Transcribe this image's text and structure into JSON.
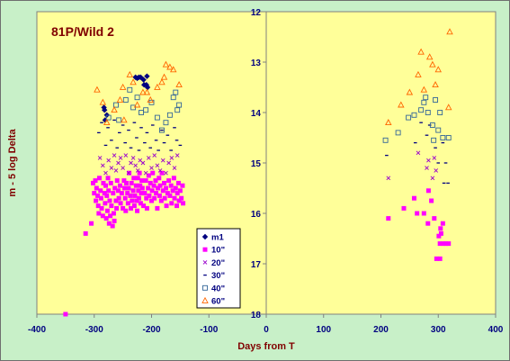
{
  "chart_data": {
    "type": "scatter",
    "title": "81P/Wild 2",
    "xlabel": "Days from T",
    "ylabel": "m - 5 log Delta",
    "xlim": [
      -400,
      400
    ],
    "ylim": [
      18,
      12
    ],
    "y_inverted": true,
    "x_ticks": [
      "-400",
      "-300",
      "-200",
      "-100",
      "0",
      "100",
      "200",
      "300",
      "400"
    ],
    "y_ticks": [
      "12",
      "13",
      "14",
      "15",
      "16",
      "17",
      "18"
    ],
    "grid": false,
    "legend_position": "center-bottom",
    "plot_background": "#ffff99",
    "outer_background": "#c8f0c8",
    "series": [
      {
        "name": "m1",
        "marker": "diamond",
        "color": "#000080",
        "points": [
          [
            -283,
            13.9
          ],
          [
            -282,
            13.95
          ],
          [
            -281,
            14.15
          ],
          [
            -278,
            14.05
          ],
          [
            -228,
            13.3
          ],
          [
            -225,
            13.32
          ],
          [
            -222,
            13.3
          ],
          [
            -219,
            13.3
          ],
          [
            -214,
            13.35
          ],
          [
            -213,
            13.45
          ],
          [
            -208,
            13.28
          ],
          [
            -209,
            13.45
          ],
          [
            -207,
            13.5
          ]
        ]
      },
      {
        "name": "10\"",
        "marker": "square",
        "color": "#ff00ff",
        "points": [
          [
            -350,
            18
          ],
          [
            -315,
            16.4
          ],
          [
            -305,
            16.2
          ],
          [
            -302,
            15.4
          ],
          [
            -300,
            15.6
          ],
          [
            -298,
            15.35
          ],
          [
            -297,
            15.75
          ],
          [
            -296,
            15.5
          ],
          [
            -294,
            15.65
          ],
          [
            -293,
            15.85
          ],
          [
            -292,
            16.0
          ],
          [
            -291,
            15.3
          ],
          [
            -289,
            15.55
          ],
          [
            -288,
            15.7
          ],
          [
            -287,
            15.9
          ],
          [
            -285,
            16.05
          ],
          [
            -284,
            15.4
          ],
          [
            -282,
            15.6
          ],
          [
            -281,
            15.8
          ],
          [
            -280,
            15.45
          ],
          [
            -279,
            16.1
          ],
          [
            -278,
            15.65
          ],
          [
            -277,
            15.95
          ],
          [
            -276,
            15.3
          ],
          [
            -275,
            15.55
          ],
          [
            -274,
            16.2
          ],
          [
            -273,
            15.75
          ],
          [
            -272,
            16.05
          ],
          [
            -271,
            15.4
          ],
          [
            -270,
            15.85
          ],
          [
            -268,
            16.25
          ],
          [
            -267,
            15.6
          ],
          [
            -266,
            16.0
          ],
          [
            -265,
            16.15
          ],
          [
            -264,
            15.5
          ],
          [
            -262,
            15.75
          ],
          [
            -261,
            15.9
          ],
          [
            -260,
            15.35
          ],
          [
            -258,
            15.55
          ],
          [
            -257,
            15.7
          ],
          [
            -255,
            15.45
          ],
          [
            -254,
            15.8
          ],
          [
            -252,
            15.6
          ],
          [
            -250,
            15.9
          ],
          [
            -248,
            15.35
          ],
          [
            -247,
            15.5
          ],
          [
            -246,
            15.7
          ],
          [
            -245,
            15.95
          ],
          [
            -244,
            15.4
          ],
          [
            -242,
            15.6
          ],
          [
            -241,
            15.8
          ],
          [
            -240,
            15.5
          ],
          [
            -239,
            15.2
          ],
          [
            -237,
            15.65
          ],
          [
            -236,
            15.9
          ],
          [
            -235,
            15.4
          ],
          [
            -234,
            15.75
          ],
          [
            -232,
            15.55
          ],
          [
            -231,
            15.3
          ],
          [
            -230,
            15.85
          ],
          [
            -229,
            15.65
          ],
          [
            -227,
            15.45
          ],
          [
            -226,
            15.75
          ],
          [
            -225,
            15.95
          ],
          [
            -224,
            15.3
          ],
          [
            -223,
            15.55
          ],
          [
            -222,
            15.7
          ],
          [
            -221,
            15.2
          ],
          [
            -220,
            15.45
          ],
          [
            -219,
            15.8
          ],
          [
            -218,
            15.6
          ],
          [
            -217,
            15.35
          ],
          [
            -216,
            15.5
          ],
          [
            -214,
            15.85
          ],
          [
            -212,
            15.6
          ],
          [
            -210,
            15.35
          ],
          [
            -209,
            15.7
          ],
          [
            -208,
            15.9
          ],
          [
            -206,
            15.5
          ],
          [
            -205,
            15.25
          ],
          [
            -204,
            15.65
          ],
          [
            -202,
            15.4
          ],
          [
            -200,
            15.75
          ],
          [
            -199,
            15.55
          ],
          [
            -198,
            15.2
          ],
          [
            -196,
            15.45
          ],
          [
            -195,
            15.7
          ],
          [
            -193,
            15.35
          ],
          [
            -192,
            15.6
          ],
          [
            -190,
            15.9
          ],
          [
            -189,
            15.5
          ],
          [
            -187,
            15.3
          ],
          [
            -186,
            15.65
          ],
          [
            -185,
            15.45
          ],
          [
            -183,
            15.75
          ],
          [
            -182,
            15.2
          ],
          [
            -180,
            15.55
          ],
          [
            -178,
            15.4
          ],
          [
            -177,
            15.7
          ],
          [
            -175,
            15.5
          ],
          [
            -174,
            15.85
          ],
          [
            -172,
            15.6
          ],
          [
            -170,
            15.35
          ],
          [
            -168,
            15.65
          ],
          [
            -166,
            15.45
          ],
          [
            -165,
            15.8
          ],
          [
            -163,
            15.55
          ],
          [
            -161,
            15.3
          ],
          [
            -160,
            15.7
          ],
          [
            -158,
            15.5
          ],
          [
            -156,
            15.85
          ],
          [
            -155,
            15.6
          ],
          [
            -153,
            15.4
          ],
          [
            -152,
            15.75
          ],
          [
            -150,
            15.55
          ],
          [
            -148,
            15.7
          ],
          [
            -146,
            15.45
          ],
          [
            -145,
            15.8
          ],
          [
            213,
            16.1
          ],
          [
            240,
            15.9
          ],
          [
            258,
            15.7
          ],
          [
            263,
            16.0
          ],
          [
            275,
            16.0
          ],
          [
            282,
            16.2
          ],
          [
            283,
            15.55
          ],
          [
            288,
            15.75
          ],
          [
            293,
            16.1
          ],
          [
            297,
            16.9
          ],
          [
            303,
            16.9
          ],
          [
            301,
            16.45
          ],
          [
            303,
            16.6
          ],
          [
            304,
            16.3
          ],
          [
            305,
            16.4
          ],
          [
            308,
            16.2
          ],
          [
            309,
            16.6
          ],
          [
            313,
            16.6
          ],
          [
            318,
            16.6
          ]
        ]
      },
      {
        "name": "20\"",
        "marker": "x",
        "color": "#9900cc",
        "points": [
          [
            -290,
            14.9
          ],
          [
            -285,
            15.05
          ],
          [
            -280,
            15.2
          ],
          [
            -275,
            14.95
          ],
          [
            -270,
            15.1
          ],
          [
            -265,
            14.85
          ],
          [
            -262,
            15.15
          ],
          [
            -258,
            15.0
          ],
          [
            -254,
            14.9
          ],
          [
            -250,
            15.1
          ],
          [
            -245,
            14.85
          ],
          [
            -240,
            15.2
          ],
          [
            -236,
            15.0
          ],
          [
            -232,
            14.9
          ],
          [
            -228,
            15.05
          ],
          [
            -224,
            15.15
          ],
          [
            -220,
            14.95
          ],
          [
            -215,
            15.0
          ],
          [
            -210,
            15.2
          ],
          [
            -205,
            14.9
          ],
          [
            -200,
            15.1
          ],
          [
            -195,
            14.85
          ],
          [
            -190,
            15.05
          ],
          [
            -185,
            15.15
          ],
          [
            -180,
            14.95
          ],
          [
            -175,
            15.2
          ],
          [
            -170,
            15.0
          ],
          [
            -165,
            14.9
          ],
          [
            -160,
            15.1
          ],
          [
            -155,
            14.85
          ],
          [
            213,
            15.3
          ],
          [
            265,
            14.8
          ],
          [
            280,
            15.1
          ],
          [
            283,
            14.95
          ],
          [
            290,
            15.3
          ],
          [
            293,
            14.9
          ],
          [
            296,
            15.15
          ]
        ]
      },
      {
        "name": "30\"",
        "marker": "dash",
        "color": "#000080",
        "points": [
          [
            -292,
            14.4
          ],
          [
            -287,
            14.2
          ],
          [
            -280,
            14.65
          ],
          [
            -276,
            14.3
          ],
          [
            -270,
            14.55
          ],
          [
            -265,
            14.15
          ],
          [
            -260,
            14.7
          ],
          [
            -256,
            14.4
          ],
          [
            -250,
            14.25
          ],
          [
            -246,
            14.6
          ],
          [
            -240,
            14.35
          ],
          [
            -236,
            14.7
          ],
          [
            -230,
            14.2
          ],
          [
            -226,
            14.5
          ],
          [
            -222,
            14.75
          ],
          [
            -218,
            14.3
          ],
          [
            -212,
            14.6
          ],
          [
            -208,
            14.4
          ],
          [
            -202,
            14.7
          ],
          [
            -198,
            14.25
          ],
          [
            -192,
            14.55
          ],
          [
            -188,
            14.75
          ],
          [
            -182,
            14.35
          ],
          [
            -178,
            14.6
          ],
          [
            -172,
            14.45
          ],
          [
            -166,
            14.75
          ],
          [
            -160,
            14.3
          ],
          [
            -156,
            14.55
          ],
          [
            -150,
            14.65
          ],
          [
            210,
            14.85
          ],
          [
            260,
            14.6
          ],
          [
            270,
            14.2
          ],
          [
            280,
            14.45
          ],
          [
            285,
            14.25
          ],
          [
            295,
            14.7
          ],
          [
            300,
            15.0
          ],
          [
            308,
            14.6
          ],
          [
            310,
            15.4
          ],
          [
            313,
            15.0
          ],
          [
            317,
            15.4
          ]
        ]
      },
      {
        "name": "40\"",
        "marker": "square-open",
        "color": "#336699",
        "points": [
          [
            -275,
            14.1
          ],
          [
            -262,
            13.85
          ],
          [
            -257,
            14.15
          ],
          [
            -245,
            13.75
          ],
          [
            -238,
            13.55
          ],
          [
            -232,
            13.9
          ],
          [
            -225,
            13.7
          ],
          [
            -218,
            14.0
          ],
          [
            -210,
            13.95
          ],
          [
            -200,
            13.8
          ],
          [
            -190,
            14.1
          ],
          [
            -182,
            14.35
          ],
          [
            -175,
            14.2
          ],
          [
            -168,
            14.05
          ],
          [
            -162,
            13.7
          ],
          [
            -158,
            13.6
          ],
          [
            -155,
            13.95
          ],
          [
            -152,
            13.85
          ],
          [
            208,
            14.55
          ],
          [
            230,
            14.4
          ],
          [
            248,
            14.1
          ],
          [
            258,
            14.05
          ],
          [
            270,
            13.95
          ],
          [
            275,
            13.8
          ],
          [
            278,
            13.7
          ],
          [
            282,
            14.0
          ],
          [
            290,
            14.25
          ],
          [
            292,
            14.55
          ],
          [
            295,
            13.75
          ],
          [
            300,
            14.35
          ],
          [
            303,
            14.0
          ],
          [
            308,
            14.5
          ],
          [
            318,
            14.5
          ]
        ]
      },
      {
        "name": "60\"",
        "marker": "triangle-open",
        "color": "#ff6600",
        "points": [
          [
            -295,
            13.55
          ],
          [
            -285,
            13.8
          ],
          [
            -278,
            14.2
          ],
          [
            -265,
            13.95
          ],
          [
            -255,
            13.75
          ],
          [
            -250,
            13.5
          ],
          [
            -248,
            14.15
          ],
          [
            -238,
            13.25
          ],
          [
            -232,
            13.4
          ],
          [
            -225,
            13.85
          ],
          [
            -215,
            13.6
          ],
          [
            -208,
            13.6
          ],
          [
            -202,
            13.75
          ],
          [
            -190,
            13.5
          ],
          [
            -182,
            13.4
          ],
          [
            -178,
            13.3
          ],
          [
            -175,
            13.05
          ],
          [
            -168,
            13.1
          ],
          [
            -162,
            13.15
          ],
          [
            -152,
            13.45
          ],
          [
            213,
            14.2
          ],
          [
            235,
            13.85
          ],
          [
            250,
            13.6
          ],
          [
            265,
            13.25
          ],
          [
            270,
            12.8
          ],
          [
            275,
            13.55
          ],
          [
            285,
            12.9
          ],
          [
            290,
            13.05
          ],
          [
            295,
            13.45
          ],
          [
            300,
            13.15
          ],
          [
            318,
            13.9
          ],
          [
            320,
            12.4
          ]
        ]
      }
    ]
  }
}
